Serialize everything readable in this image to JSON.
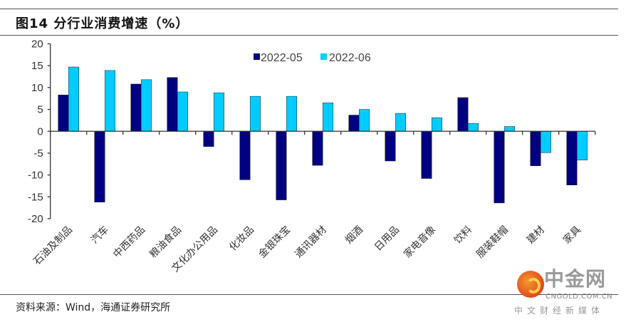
{
  "title": "图14 分行业消费增速（%）",
  "source": "资料来源：Wind，海通证券研究所",
  "watermark": {
    "name": "中金网",
    "domain": "CNGOLD.COM.CN",
    "tagline": "中文财经新媒体"
  },
  "chart_data": {
    "type": "bar",
    "title": "",
    "xlabel": "",
    "ylabel": "",
    "ylim": [
      -20,
      20
    ],
    "yticks": [
      20,
      15,
      10,
      5,
      0,
      -5,
      -10,
      -15,
      -20
    ],
    "grid": false,
    "legend_position": "top-center",
    "categories": [
      "石油及制品",
      "汽车",
      "中西药品",
      "粮油食品",
      "文化办公用品",
      "化妆品",
      "金银珠宝",
      "通讯器材",
      "烟酒",
      "日用品",
      "家电音像",
      "饮料",
      "服装鞋帽",
      "建材",
      "家具"
    ],
    "series": [
      {
        "name": "2022-05",
        "color": "#000080",
        "values": [
          8.3,
          -16.2,
          10.8,
          12.3,
          -3.5,
          -11.1,
          -15.7,
          -7.8,
          3.7,
          -6.8,
          -10.8,
          7.7,
          -16.4,
          -7.9,
          -12.3
        ]
      },
      {
        "name": "2022-06",
        "color": "#00CCFF",
        "values": [
          14.7,
          13.9,
          11.8,
          9.0,
          8.8,
          8.0,
          8.0,
          6.5,
          5.0,
          4.1,
          3.1,
          1.8,
          1.1,
          -4.9,
          -6.6
        ]
      }
    ]
  }
}
